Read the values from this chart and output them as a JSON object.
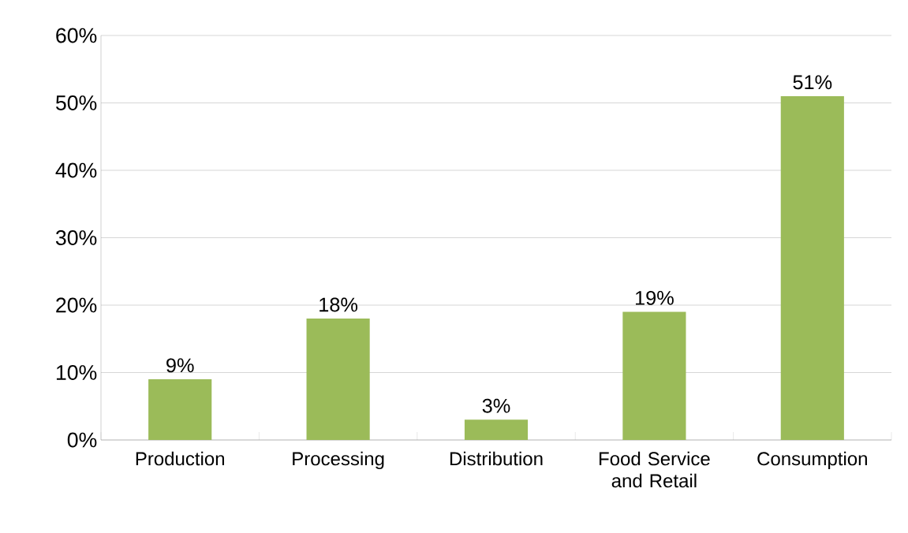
{
  "chart_data": {
    "type": "bar",
    "categories": [
      "Production",
      "Processing",
      "Distribution",
      "Food Service and Retail",
      "Consumption"
    ],
    "values": [
      9,
      18,
      3,
      19,
      51
    ],
    "value_labels": [
      "9%",
      "18%",
      "3%",
      "19%",
      "51%"
    ],
    "color": "#9bbb59",
    "ylim": [
      0,
      60
    ],
    "yticks": [
      {
        "value": 0,
        "label": "0%"
      },
      {
        "value": 10,
        "label": "10%"
      },
      {
        "value": 20,
        "label": "20%"
      },
      {
        "value": 30,
        "label": "30%"
      },
      {
        "value": 40,
        "label": "40%"
      },
      {
        "value": 50,
        "label": "50%"
      },
      {
        "value": 60,
        "label": "60%"
      }
    ],
    "grid": "y"
  }
}
